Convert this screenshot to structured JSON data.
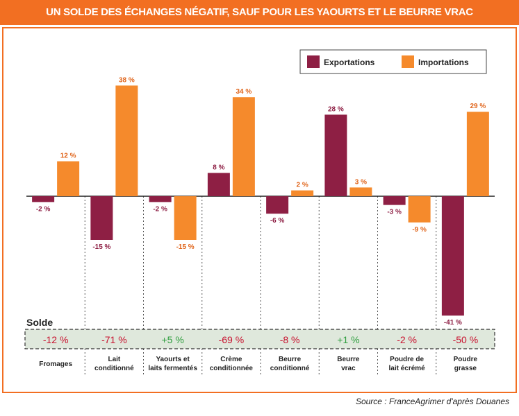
{
  "header": {
    "title": "UN SOLDE DES ÉCHANGES NÉGATIF, SAUF POUR LES YAOURTS ET LE BEURRE VRAC"
  },
  "footer": {
    "source": "Source : FranceAgrimer d'après Douanes"
  },
  "colors": {
    "exports": "#8e1f44",
    "imports": "#f58a2c",
    "accent": "#f26f22",
    "solde_negative": "#c8102e",
    "solde_positive": "#2e9e3e",
    "solde_bg": "#dfe8dc"
  },
  "chart_data": {
    "type": "bar",
    "title": "UN SOLDE DES ÉCHANGES NÉGATIF, SAUF POUR LES YAOURTS ET LE BEURRE VRAC",
    "categories": [
      "Fromages",
      "Lait conditionné",
      "Yaourts et laits fermentés",
      "Crème conditionnée",
      "Beurre conditionné",
      "Beurre vrac",
      "Poudre de lait écrémé",
      "Poudre grasse"
    ],
    "series": [
      {
        "name": "Exportations",
        "values": [
          -2,
          -15,
          -2,
          8,
          -6,
          28,
          -3,
          -41
        ],
        "labels": [
          "-2 %",
          "-15 %",
          "-2 %",
          "8 %",
          "-6 %",
          "28 %",
          "-3 %",
          "-41 %"
        ]
      },
      {
        "name": "Importations",
        "values": [
          12,
          38,
          -15,
          34,
          2,
          3,
          -9,
          29
        ],
        "labels": [
          "12 %",
          "38 %",
          "-15 %",
          "34 %",
          "2 %",
          "3 %",
          "-9 %",
          "29 %"
        ]
      }
    ],
    "solde": {
      "label": "Solde",
      "values": [
        "-12 %",
        "-71 %",
        "+5 %",
        "-69 %",
        "-8 %",
        "+1 %",
        "-2 %",
        "-50 %"
      ]
    },
    "ylim": [
      -45,
      45
    ],
    "legend": "top-right",
    "grid": false
  }
}
